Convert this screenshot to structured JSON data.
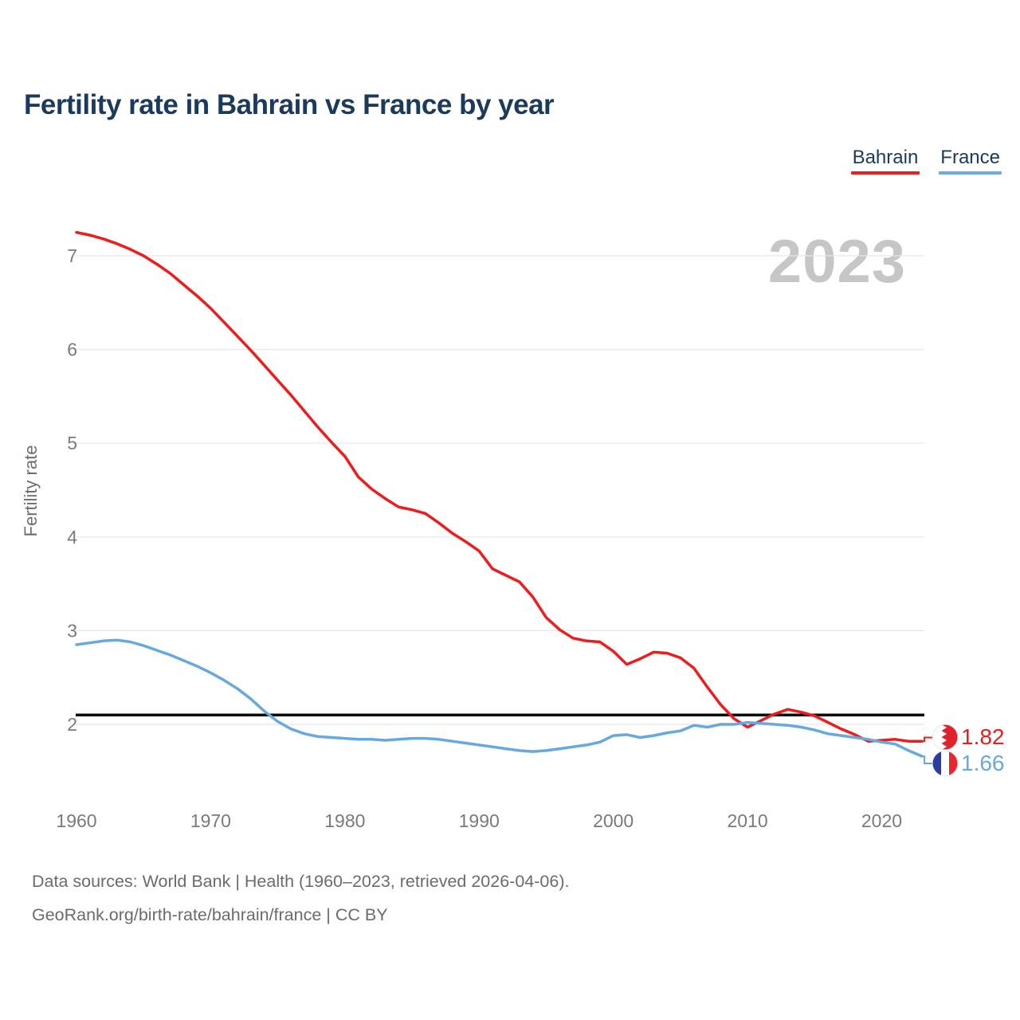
{
  "title": "Fertility rate in Bahrain vs France by year",
  "watermark": "2023",
  "colors": {
    "red": "#ee1c1c",
    "blue": "#67a9de",
    "navy": "#1b3a5c",
    "grid": "#e8e8e8",
    "axis_text": "#7a7a7a",
    "watermark": "#c6c6c6",
    "reference_line": "#0a0a0a",
    "bahrain_flag_red": "#df222e",
    "france_flag_blue": "#2a3d9f",
    "france_flag_red": "#e8262d"
  },
  "legend": [
    {
      "label": "Bahrain",
      "color": "#ee1c1c"
    },
    {
      "label": "France",
      "color": "#6cabe2"
    }
  ],
  "y_axis": {
    "label": "Fertility rate",
    "ticks": [
      2,
      3,
      4,
      5,
      6,
      7
    ]
  },
  "x_axis": {
    "ticks": [
      1960,
      1970,
      1980,
      1990,
      2000,
      2010,
      2020
    ]
  },
  "reference_line": {
    "value": 2.1
  },
  "end_labels": [
    {
      "series": "Bahrain",
      "value": "1.82",
      "color": "#ee1c1c",
      "flag": "bahrain-flag"
    },
    {
      "series": "France",
      "value": "1.66",
      "color": "#67a9de",
      "flag": "france-flag"
    }
  ],
  "footer": {
    "line1": "Data sources: World Bank | Health (1960–2023, retrieved 2026-04-06).",
    "line2": "GeoRank.org/birth-rate/bahrain/france | CC BY"
  },
  "chart_data": {
    "type": "line",
    "title": "Fertility rate in Bahrain vs France by year",
    "xlabel": "",
    "ylabel": "Fertility rate",
    "x_start": 1960,
    "x_end": 2023,
    "xlim": [
      1960,
      2023
    ],
    "ylim": [
      1.55,
      7.4
    ],
    "grid": true,
    "legend_position": "top-right",
    "reference_line": 2.1,
    "series": [
      {
        "name": "Bahrain",
        "color": "#ee1c1c",
        "values": [
          7.25,
          7.22,
          7.18,
          7.13,
          7.07,
          7.0,
          6.91,
          6.81,
          6.69,
          6.57,
          6.44,
          6.29,
          6.14,
          5.99,
          5.83,
          5.67,
          5.51,
          5.34,
          5.17,
          5.01,
          4.86,
          4.64,
          4.51,
          4.41,
          4.32,
          4.29,
          4.25,
          4.15,
          4.04,
          3.95,
          3.85,
          3.66,
          3.59,
          3.52,
          3.36,
          3.14,
          3.01,
          2.92,
          2.89,
          2.88,
          2.78,
          2.64,
          2.7,
          2.77,
          2.76,
          2.71,
          2.6,
          2.4,
          2.21,
          2.06,
          1.97,
          2.04,
          2.11,
          2.16,
          2.13,
          2.09,
          2.02,
          1.95,
          1.89,
          1.82,
          1.83,
          1.84,
          1.82,
          1.82
        ]
      },
      {
        "name": "France",
        "color": "#67a9de",
        "values": [
          2.85,
          2.87,
          2.89,
          2.9,
          2.88,
          2.84,
          2.79,
          2.74,
          2.68,
          2.62,
          2.55,
          2.47,
          2.38,
          2.27,
          2.14,
          2.03,
          1.95,
          1.9,
          1.87,
          1.86,
          1.85,
          1.84,
          1.84,
          1.83,
          1.84,
          1.85,
          1.85,
          1.84,
          1.82,
          1.8,
          1.78,
          1.76,
          1.74,
          1.72,
          1.71,
          1.72,
          1.74,
          1.76,
          1.78,
          1.81,
          1.88,
          1.89,
          1.86,
          1.88,
          1.91,
          1.93,
          1.99,
          1.97,
          2.0,
          2.0,
          2.02,
          2.01,
          2.0,
          1.99,
          1.97,
          1.94,
          1.9,
          1.88,
          1.86,
          1.84,
          1.81,
          1.79,
          1.72,
          1.66
        ]
      }
    ]
  }
}
